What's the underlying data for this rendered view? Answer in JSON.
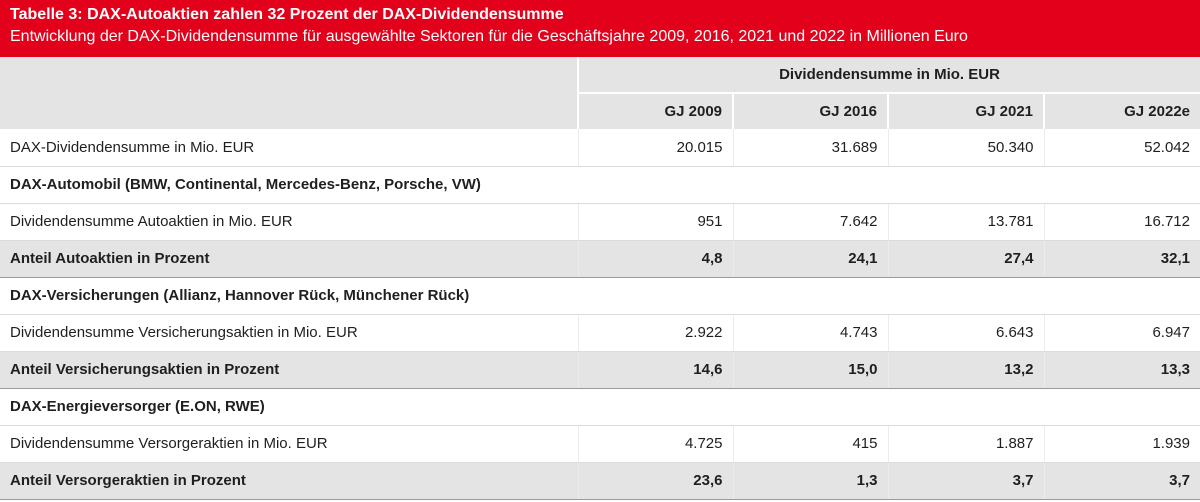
{
  "header": {
    "title": "Tabelle 3: DAX-Autoaktien zahlen 32 Prozent der DAX-Dividendensumme",
    "subtitle": "Entwicklung der DAX-Dividendensumme für ausgewählte Sektoren für die Geschäftsjahre 2009, 2016, 2021 und 2022 in Millionen Euro"
  },
  "table": {
    "group_header": "Dividendensumme in Mio. EUR",
    "columns": [
      "GJ 2009",
      "GJ 2016",
      "GJ 2021",
      "GJ 2022e"
    ],
    "rows": [
      {
        "type": "plain",
        "label": "DAX-Dividendensumme in Mio. EUR",
        "values": [
          "20.015",
          "31.689",
          "50.340",
          "52.042"
        ]
      },
      {
        "type": "section",
        "label": "DAX-Automobil (BMW, Continental, Mercedes-Benz, Porsche, VW)"
      },
      {
        "type": "plain",
        "label": "Dividendensumme Autoaktien in Mio. EUR",
        "values": [
          "951",
          "7.642",
          "13.781",
          "16.712"
        ]
      },
      {
        "type": "share",
        "label": "Anteil Autoaktien in Prozent",
        "values": [
          "4,8",
          "24,1",
          "27,4",
          "32,1"
        ]
      },
      {
        "type": "section",
        "label": "DAX-Versicherungen (Allianz, Hannover Rück, Münchener Rück)"
      },
      {
        "type": "plain",
        "label": "Dividendensumme Versicherungsaktien in Mio. EUR",
        "values": [
          "2.922",
          "4.743",
          "6.643",
          "6.947"
        ]
      },
      {
        "type": "share",
        "label": "Anteil Versicherungsaktien in Prozent",
        "values": [
          "14,6",
          "15,0",
          "13,2",
          "13,3"
        ]
      },
      {
        "type": "section",
        "label": "DAX-Energieversorger (E.ON, RWE)"
      },
      {
        "type": "plain",
        "label": "Dividendensumme Versorgeraktien in Mio. EUR",
        "values": [
          "4.725",
          "415",
          "1.887",
          "1.939"
        ]
      },
      {
        "type": "share",
        "label": "Anteil Versorgeraktien in Prozent",
        "values": [
          "23,6",
          "1,3",
          "3,7",
          "3,7"
        ]
      }
    ]
  },
  "colors": {
    "banner": "#e2001a",
    "header_bg": "#e4e4e4",
    "share_row_bg": "#e4e4e4"
  }
}
